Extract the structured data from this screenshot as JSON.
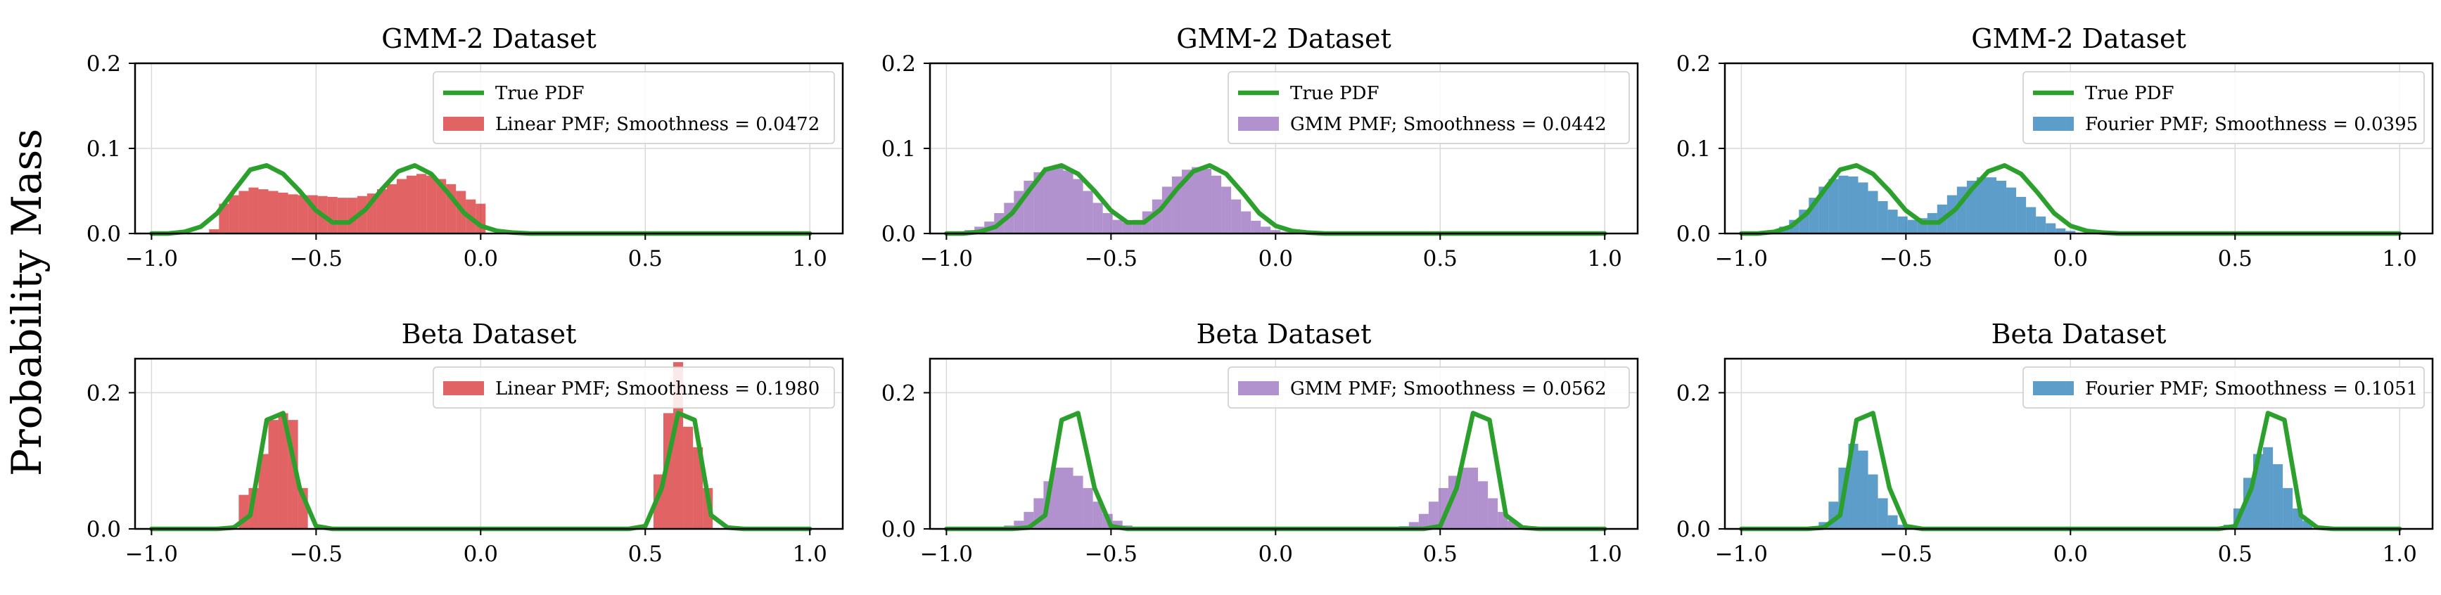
{
  "figure": {
    "ylabel": "Probability Mass"
  },
  "colors": {
    "linear": "#d62728",
    "gmm": "#9467bd",
    "fourier": "#1f77b4",
    "true_pdf": "#2ca02c"
  },
  "chart_data": [
    {
      "id": "gmm-linear",
      "type": "bar",
      "title": "GMM-2 Dataset",
      "xlim": [
        -1.05,
        1.1
      ],
      "ylim": [
        0,
        0.2
      ],
      "xticks": [
        -1.0,
        -0.5,
        0.0,
        0.5,
        1.0
      ],
      "xtick_labels": [
        "−1.0",
        "−0.5",
        "0.0",
        "0.5",
        "1.0"
      ],
      "yticks": [
        0.0,
        0.1,
        0.2
      ],
      "ytick_labels": [
        "0.0",
        "0.1",
        "0.2"
      ],
      "grid": true,
      "legend_position": "top-right",
      "true_pdf": {
        "name": "True PDF",
        "x": [
          -1.0,
          -0.95,
          -0.9,
          -0.85,
          -0.8,
          -0.75,
          -0.7,
          -0.65,
          -0.6,
          -0.55,
          -0.5,
          -0.45,
          -0.4,
          -0.35,
          -0.3,
          -0.25,
          -0.2,
          -0.15,
          -0.1,
          -0.05,
          0.0,
          0.05,
          0.1,
          0.15,
          0.2,
          0.25,
          0.3,
          0.35,
          0.4,
          0.45,
          0.5,
          0.55,
          0.6,
          0.65,
          0.7,
          0.75,
          0.8,
          0.85,
          0.9,
          0.95,
          1.0
        ],
        "y": [
          0.0,
          0.0,
          0.002,
          0.008,
          0.024,
          0.05,
          0.075,
          0.08,
          0.07,
          0.05,
          0.027,
          0.013,
          0.013,
          0.028,
          0.052,
          0.073,
          0.08,
          0.07,
          0.048,
          0.024,
          0.009,
          0.003,
          0.001,
          0.0,
          0.0,
          0.0,
          0.0,
          0.0,
          0.0,
          0.0,
          0.0,
          0.0,
          0.0,
          0.0,
          0.0,
          0.0,
          0.0,
          0.0,
          0.0,
          0.0,
          0.0
        ]
      },
      "series": [
        {
          "name": "Linear PMF; Smoothness = 0.0472",
          "color_key": "linear",
          "bin_width": 0.03,
          "x": [
            -0.81,
            -0.78,
            -0.75,
            -0.72,
            -0.69,
            -0.66,
            -0.63,
            -0.6,
            -0.57,
            -0.54,
            -0.51,
            -0.48,
            -0.45,
            -0.42,
            -0.39,
            -0.36,
            -0.33,
            -0.3,
            -0.27,
            -0.24,
            -0.21,
            -0.18,
            -0.15,
            -0.12,
            -0.09,
            -0.06,
            -0.03,
            0.0
          ],
          "values": [
            0.005,
            0.035,
            0.045,
            0.05,
            0.054,
            0.052,
            0.05,
            0.048,
            0.046,
            0.045,
            0.045,
            0.044,
            0.043,
            0.042,
            0.042,
            0.044,
            0.047,
            0.052,
            0.058,
            0.064,
            0.068,
            0.07,
            0.068,
            0.064,
            0.058,
            0.05,
            0.04,
            0.035
          ]
        }
      ]
    },
    {
      "id": "gmm-gmm",
      "type": "bar",
      "title": "GMM-2 Dataset",
      "xlim": [
        -1.05,
        1.1
      ],
      "ylim": [
        0,
        0.2
      ],
      "xticks": [
        -1.0,
        -0.5,
        0.0,
        0.5,
        1.0
      ],
      "xtick_labels": [
        "−1.0",
        "−0.5",
        "0.0",
        "0.5",
        "1.0"
      ],
      "yticks": [
        0.0,
        0.1,
        0.2
      ],
      "ytick_labels": [
        "0.0",
        "0.1",
        "0.2"
      ],
      "grid": true,
      "legend_position": "top-right",
      "true_pdf": {
        "name": "True PDF",
        "x": [
          -1.0,
          -0.95,
          -0.9,
          -0.85,
          -0.8,
          -0.75,
          -0.7,
          -0.65,
          -0.6,
          -0.55,
          -0.5,
          -0.45,
          -0.4,
          -0.35,
          -0.3,
          -0.25,
          -0.2,
          -0.15,
          -0.1,
          -0.05,
          0.0,
          0.05,
          0.1,
          0.15,
          0.2,
          0.25,
          0.3,
          0.35,
          0.4,
          0.45,
          0.5,
          0.55,
          0.6,
          0.65,
          0.7,
          0.75,
          0.8,
          0.85,
          0.9,
          0.95,
          1.0
        ],
        "y": [
          0.0,
          0.0,
          0.002,
          0.008,
          0.024,
          0.05,
          0.075,
          0.08,
          0.07,
          0.05,
          0.027,
          0.013,
          0.013,
          0.028,
          0.052,
          0.073,
          0.08,
          0.07,
          0.048,
          0.024,
          0.009,
          0.003,
          0.001,
          0.0,
          0.0,
          0.0,
          0.0,
          0.0,
          0.0,
          0.0,
          0.0,
          0.0,
          0.0,
          0.0,
          0.0,
          0.0,
          0.0,
          0.0,
          0.0,
          0.0,
          0.0
        ]
      },
      "series": [
        {
          "name": "GMM PMF; Smoothness = 0.0442",
          "color_key": "gmm",
          "bin_width": 0.03,
          "x": [
            -0.96,
            -0.93,
            -0.9,
            -0.87,
            -0.84,
            -0.81,
            -0.78,
            -0.75,
            -0.72,
            -0.69,
            -0.66,
            -0.63,
            -0.6,
            -0.57,
            -0.54,
            -0.51,
            -0.48,
            -0.45,
            -0.42,
            -0.39,
            -0.36,
            -0.33,
            -0.3,
            -0.27,
            -0.24,
            -0.21,
            -0.18,
            -0.15,
            -0.12,
            -0.09,
            -0.06,
            -0.03,
            0.0,
            0.03,
            0.06
          ],
          "values": [
            0.002,
            0.004,
            0.008,
            0.014,
            0.024,
            0.036,
            0.05,
            0.062,
            0.072,
            0.078,
            0.079,
            0.074,
            0.064,
            0.05,
            0.036,
            0.024,
            0.016,
            0.013,
            0.016,
            0.026,
            0.04,
            0.055,
            0.067,
            0.075,
            0.078,
            0.076,
            0.068,
            0.055,
            0.04,
            0.026,
            0.015,
            0.008,
            0.004,
            0.002,
            0.001
          ]
        }
      ]
    },
    {
      "id": "gmm-fourier",
      "type": "bar",
      "title": "GMM-2 Dataset",
      "xlim": [
        -1.05,
        1.1
      ],
      "ylim": [
        0,
        0.2
      ],
      "xticks": [
        -1.0,
        -0.5,
        0.0,
        0.5,
        1.0
      ],
      "xtick_labels": [
        "−1.0",
        "−0.5",
        "0.0",
        "0.5",
        "1.0"
      ],
      "yticks": [
        0.0,
        0.1,
        0.2
      ],
      "ytick_labels": [
        "0.0",
        "0.1",
        "0.2"
      ],
      "grid": true,
      "legend_position": "top-right",
      "true_pdf": {
        "name": "True PDF",
        "x": [
          -1.0,
          -0.95,
          -0.9,
          -0.85,
          -0.8,
          -0.75,
          -0.7,
          -0.65,
          -0.6,
          -0.55,
          -0.5,
          -0.45,
          -0.4,
          -0.35,
          -0.3,
          -0.25,
          -0.2,
          -0.15,
          -0.1,
          -0.05,
          0.0,
          0.05,
          0.1,
          0.15,
          0.2,
          0.25,
          0.3,
          0.35,
          0.4,
          0.45,
          0.5,
          0.55,
          0.6,
          0.65,
          0.7,
          0.75,
          0.8,
          0.85,
          0.9,
          0.95,
          1.0
        ],
        "y": [
          0.0,
          0.0,
          0.002,
          0.008,
          0.024,
          0.05,
          0.075,
          0.08,
          0.07,
          0.05,
          0.027,
          0.013,
          0.013,
          0.028,
          0.052,
          0.073,
          0.08,
          0.07,
          0.048,
          0.024,
          0.009,
          0.003,
          0.001,
          0.0,
          0.0,
          0.0,
          0.0,
          0.0,
          0.0,
          0.0,
          0.0,
          0.0,
          0.0,
          0.0,
          0.0,
          0.0,
          0.0,
          0.0,
          0.0,
          0.0,
          0.0
        ]
      },
      "series": [
        {
          "name": "Fourier PMF; Smoothness = 0.0395",
          "color_key": "fourier",
          "bin_width": 0.03,
          "x": [
            -0.9,
            -0.87,
            -0.84,
            -0.81,
            -0.78,
            -0.75,
            -0.72,
            -0.69,
            -0.66,
            -0.63,
            -0.6,
            -0.57,
            -0.54,
            -0.51,
            -0.48,
            -0.45,
            -0.42,
            -0.39,
            -0.36,
            -0.33,
            -0.3,
            -0.27,
            -0.24,
            -0.21,
            -0.18,
            -0.15,
            -0.12,
            -0.09,
            -0.06,
            -0.03,
            0.0
          ],
          "values": [
            0.004,
            0.008,
            0.016,
            0.028,
            0.042,
            0.055,
            0.064,
            0.068,
            0.067,
            0.06,
            0.05,
            0.038,
            0.028,
            0.02,
            0.016,
            0.018,
            0.024,
            0.034,
            0.045,
            0.055,
            0.062,
            0.066,
            0.066,
            0.062,
            0.054,
            0.043,
            0.031,
            0.02,
            0.012,
            0.006,
            0.003
          ]
        }
      ]
    },
    {
      "id": "beta-linear",
      "type": "bar",
      "title": "Beta Dataset",
      "xlim": [
        -1.05,
        1.1
      ],
      "ylim": [
        0,
        0.25
      ],
      "xticks": [
        -1.0,
        -0.5,
        0.0,
        0.5,
        1.0
      ],
      "xtick_labels": [
        "−1.0",
        "−0.5",
        "0.0",
        "0.5",
        "1.0"
      ],
      "yticks": [
        0.0,
        0.2
      ],
      "ytick_labels": [
        "0.0",
        "0.2"
      ],
      "grid": true,
      "legend_position": "top-right",
      "true_pdf": {
        "name": "True PDF",
        "x": [
          -1.0,
          -0.95,
          -0.9,
          -0.85,
          -0.8,
          -0.75,
          -0.7,
          -0.65,
          -0.6,
          -0.55,
          -0.5,
          -0.45,
          -0.4,
          -0.35,
          -0.3,
          -0.25,
          -0.2,
          -0.15,
          -0.1,
          -0.05,
          0.0,
          0.05,
          0.1,
          0.15,
          0.2,
          0.25,
          0.3,
          0.35,
          0.4,
          0.45,
          0.5,
          0.55,
          0.6,
          0.65,
          0.7,
          0.75,
          0.8,
          0.85,
          0.9,
          0.95,
          1.0
        ],
        "y": [
          0.0,
          0.0,
          0.0,
          0.0,
          0.0,
          0.002,
          0.02,
          0.16,
          0.17,
          0.06,
          0.004,
          0.0,
          0.0,
          0.0,
          0.0,
          0.0,
          0.0,
          0.0,
          0.0,
          0.0,
          0.0,
          0.0,
          0.0,
          0.0,
          0.0,
          0.0,
          0.0,
          0.0,
          0.0,
          0.0,
          0.004,
          0.06,
          0.17,
          0.16,
          0.02,
          0.002,
          0.0,
          0.0,
          0.0,
          0.0,
          0.0
        ]
      },
      "series": [
        {
          "name": "Linear PMF; Smoothness = 0.1980",
          "color_key": "linear",
          "bin_width": 0.03,
          "x": [
            -0.72,
            -0.69,
            -0.66,
            -0.63,
            -0.6,
            -0.57,
            -0.54,
            0.54,
            0.57,
            0.6,
            0.63,
            0.66,
            0.69
          ],
          "values": [
            0.05,
            0.06,
            0.11,
            0.16,
            0.17,
            0.16,
            0.06,
            0.08,
            0.17,
            0.245,
            0.15,
            0.12,
            0.06
          ]
        }
      ]
    },
    {
      "id": "beta-gmm",
      "type": "bar",
      "title": "Beta Dataset",
      "xlim": [
        -1.05,
        1.1
      ],
      "ylim": [
        0,
        0.25
      ],
      "xticks": [
        -1.0,
        -0.5,
        0.0,
        0.5,
        1.0
      ],
      "xtick_labels": [
        "−1.0",
        "−0.5",
        "0.0",
        "0.5",
        "1.0"
      ],
      "yticks": [
        0.0,
        0.2
      ],
      "ytick_labels": [
        "0.0",
        "0.2"
      ],
      "grid": true,
      "legend_position": "top-right",
      "true_pdf": {
        "name": "True PDF",
        "x": [
          -1.0,
          -0.95,
          -0.9,
          -0.85,
          -0.8,
          -0.75,
          -0.7,
          -0.65,
          -0.6,
          -0.55,
          -0.5,
          -0.45,
          -0.4,
          -0.35,
          -0.3,
          -0.25,
          -0.2,
          -0.15,
          -0.1,
          -0.05,
          0.0,
          0.05,
          0.1,
          0.15,
          0.2,
          0.25,
          0.3,
          0.35,
          0.4,
          0.45,
          0.5,
          0.55,
          0.6,
          0.65,
          0.7,
          0.75,
          0.8,
          0.85,
          0.9,
          0.95,
          1.0
        ],
        "y": [
          0.0,
          0.0,
          0.0,
          0.0,
          0.0,
          0.002,
          0.02,
          0.16,
          0.17,
          0.06,
          0.004,
          0.0,
          0.0,
          0.0,
          0.0,
          0.0,
          0.0,
          0.0,
          0.0,
          0.0,
          0.0,
          0.0,
          0.0,
          0.0,
          0.0,
          0.0,
          0.0,
          0.0,
          0.0,
          0.0,
          0.004,
          0.06,
          0.17,
          0.16,
          0.02,
          0.002,
          0.0,
          0.0,
          0.0,
          0.0,
          0.0
        ]
      },
      "series": [
        {
          "name": "GMM PMF; Smoothness = 0.0562",
          "color_key": "gmm",
          "bin_width": 0.03,
          "x": [
            -0.81,
            -0.78,
            -0.75,
            -0.72,
            -0.69,
            -0.66,
            -0.63,
            -0.6,
            -0.57,
            -0.54,
            -0.51,
            -0.48,
            -0.45,
            -0.42,
            0.39,
            0.42,
            0.45,
            0.48,
            0.51,
            0.54,
            0.57,
            0.6,
            0.63,
            0.66,
            0.69,
            0.72,
            0.75,
            0.78
          ],
          "values": [
            0.005,
            0.012,
            0.025,
            0.045,
            0.07,
            0.09,
            0.09,
            0.078,
            0.06,
            0.04,
            0.022,
            0.012,
            0.005,
            0.002,
            0.004,
            0.01,
            0.022,
            0.04,
            0.06,
            0.078,
            0.09,
            0.09,
            0.07,
            0.045,
            0.025,
            0.012,
            0.005,
            0.002
          ]
        }
      ]
    },
    {
      "id": "beta-fourier",
      "type": "bar",
      "title": "Beta Dataset",
      "xlim": [
        -1.05,
        1.1
      ],
      "ylim": [
        0,
        0.25
      ],
      "xticks": [
        -1.0,
        -0.5,
        0.0,
        0.5,
        1.0
      ],
      "xtick_labels": [
        "−1.0",
        "−0.5",
        "0.0",
        "0.5",
        "1.0"
      ],
      "yticks": [
        0.0,
        0.2
      ],
      "ytick_labels": [
        "0.0",
        "0.2"
      ],
      "grid": true,
      "legend_position": "top-right",
      "true_pdf": {
        "name": "True PDF",
        "x": [
          -1.0,
          -0.95,
          -0.9,
          -0.85,
          -0.8,
          -0.75,
          -0.7,
          -0.65,
          -0.6,
          -0.55,
          -0.5,
          -0.45,
          -0.4,
          -0.35,
          -0.3,
          -0.25,
          -0.2,
          -0.15,
          -0.1,
          -0.05,
          0.0,
          0.05,
          0.1,
          0.15,
          0.2,
          0.25,
          0.3,
          0.35,
          0.4,
          0.45,
          0.5,
          0.55,
          0.6,
          0.65,
          0.7,
          0.75,
          0.8,
          0.85,
          0.9,
          0.95,
          1.0
        ],
        "y": [
          0.0,
          0.0,
          0.0,
          0.0,
          0.0,
          0.002,
          0.02,
          0.16,
          0.17,
          0.06,
          0.004,
          0.0,
          0.0,
          0.0,
          0.0,
          0.0,
          0.0,
          0.0,
          0.0,
          0.0,
          0.0,
          0.0,
          0.0,
          0.0,
          0.0,
          0.0,
          0.0,
          0.0,
          0.0,
          0.0,
          0.004,
          0.06,
          0.17,
          0.16,
          0.02,
          0.002,
          0.0,
          0.0,
          0.0,
          0.0,
          0.0
        ]
      },
      "series": [
        {
          "name": "Fourier PMF; Smoothness = 0.1051",
          "color_key": "fourier",
          "bin_width": 0.03,
          "x": [
            -0.75,
            -0.72,
            -0.69,
            -0.66,
            -0.63,
            -0.6,
            -0.57,
            -0.54,
            -0.51,
            0.48,
            0.51,
            0.54,
            0.57,
            0.6,
            0.63,
            0.66,
            0.69,
            0.72
          ],
          "values": [
            0.01,
            0.04,
            0.09,
            0.125,
            0.115,
            0.08,
            0.045,
            0.02,
            0.006,
            0.006,
            0.03,
            0.075,
            0.11,
            0.12,
            0.095,
            0.06,
            0.03,
            0.012
          ]
        }
      ]
    }
  ]
}
